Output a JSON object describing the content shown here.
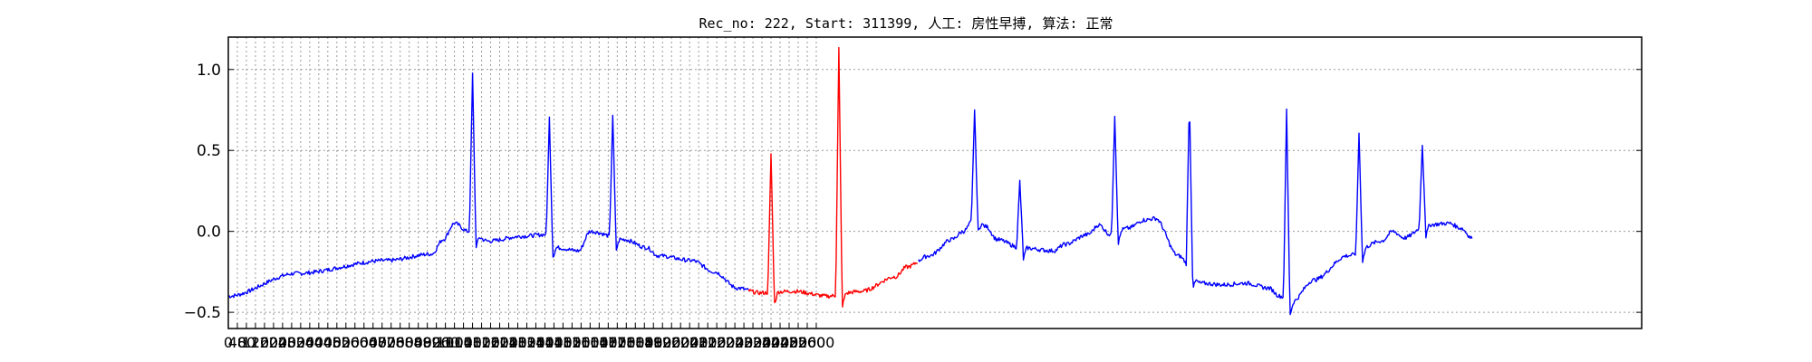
{
  "chart_data": {
    "type": "line",
    "title": "Rec_no: 222, Start: 311399, 人工: 房性早搏, 算法: 正常",
    "xlabel": "",
    "ylabel": "",
    "xlim": [
      0,
      6250
    ],
    "ylim": [
      -0.6,
      1.2
    ],
    "grid": true,
    "x_ticks": [
      0,
      40,
      80,
      120,
      160,
      200,
      240,
      280,
      320,
      360,
      400,
      440,
      480,
      520,
      560,
      600,
      640,
      680,
      720,
      760,
      800,
      840,
      880,
      920,
      960,
      1000,
      1040,
      1080,
      1120,
      1160,
      1200,
      1240,
      1280,
      1320,
      1360,
      1400,
      1440,
      1480,
      1520,
      1560,
      1600,
      1640,
      1680,
      1720,
      1760,
      1800,
      1840,
      1880,
      1920,
      1960,
      2000,
      2040,
      2080,
      2120,
      2160,
      2200,
      2240,
      2280,
      2320,
      2360,
      2400,
      2440,
      2480,
      2520,
      2560,
      2600
    ],
    "x_tick_labels": [
      "0",
      "40",
      "80",
      "120",
      "160",
      "200",
      "240",
      "280",
      "320",
      "360",
      "400",
      "440",
      "480",
      "520",
      "560",
      "600",
      "640",
      "680",
      "720",
      "760",
      "800",
      "840",
      "880",
      "920",
      "960",
      "1000",
      "1040",
      "1080",
      "1120",
      "1160",
      "1200",
      "1240",
      "1280",
      "1320",
      "1360",
      "1400",
      "1440",
      "1480",
      "1520",
      "1560",
      "1600",
      "1640",
      "1680",
      "1720",
      "1760",
      "1800",
      "1840",
      "1880",
      "1920",
      "1960",
      "2000",
      "2040",
      "2080",
      "2120",
      "2160",
      "2200",
      "2240",
      "2280",
      "2320",
      "2360",
      "2400",
      "2440",
      "2480",
      "2520",
      "2560",
      "2600"
    ],
    "y_ticks": [
      -0.5,
      0.0,
      0.5,
      1.0
    ],
    "y_tick_labels": [
      "−0.5",
      "0.0",
      "0.5",
      "1.0"
    ],
    "colors": {
      "normal": "#0000ff",
      "highlight": "#ff0000",
      "grid": "#9a9a9a"
    },
    "highlight_range": [
      2300,
      3050
    ],
    "signal_end": 5500,
    "baseline": [
      [
        0,
        -0.4
      ],
      [
        300,
        -0.26
      ],
      [
        700,
        -0.18
      ],
      [
        900,
        -0.14
      ],
      [
        950,
        -0.05
      ],
      [
        1000,
        0.05
      ],
      [
        1060,
        0.0
      ],
      [
        1150,
        -0.06
      ],
      [
        1300,
        -0.03
      ],
      [
        1400,
        -0.02
      ],
      [
        1450,
        -0.1
      ],
      [
        1550,
        -0.12
      ],
      [
        1600,
        0.0
      ],
      [
        1750,
        -0.05
      ],
      [
        1850,
        -0.1
      ],
      [
        1900,
        -0.15
      ],
      [
        2050,
        -0.18
      ],
      [
        2150,
        -0.25
      ],
      [
        2250,
        -0.35
      ],
      [
        2350,
        -0.38
      ],
      [
        2500,
        -0.37
      ],
      [
        2650,
        -0.4
      ],
      [
        2800,
        -0.37
      ],
      [
        2950,
        -0.28
      ],
      [
        3000,
        -0.22
      ],
      [
        3100,
        -0.15
      ],
      [
        3200,
        -0.05
      ],
      [
        3250,
        0.0
      ],
      [
        3300,
        0.08
      ],
      [
        3350,
        0.03
      ],
      [
        3400,
        -0.05
      ],
      [
        3500,
        -0.1
      ],
      [
        3650,
        -0.12
      ],
      [
        3700,
        -0.08
      ],
      [
        3800,
        -0.02
      ],
      [
        3850,
        0.04
      ],
      [
        3900,
        -0.02
      ],
      [
        3980,
        0.02
      ],
      [
        4050,
        0.07
      ],
      [
        4100,
        0.08
      ],
      [
        4200,
        -0.15
      ],
      [
        4300,
        -0.32
      ],
      [
        4400,
        -0.33
      ],
      [
        4500,
        -0.32
      ],
      [
        4600,
        -0.35
      ],
      [
        4650,
        -0.4
      ],
      [
        4700,
        -0.44
      ],
      [
        4800,
        -0.3
      ],
      [
        4950,
        -0.15
      ],
      [
        5100,
        -0.06
      ],
      [
        5150,
        0.0
      ],
      [
        5200,
        -0.04
      ],
      [
        5300,
        0.04
      ],
      [
        5400,
        0.05
      ],
      [
        5450,
        0.02
      ],
      [
        5500,
        -0.04
      ]
    ],
    "spikes": [
      [
        1080,
        0.97
      ],
      [
        1420,
        0.7
      ],
      [
        1700,
        0.72
      ],
      [
        2400,
        0.48
      ],
      [
        2700,
        1.13
      ],
      [
        3300,
        0.75
      ],
      [
        3500,
        0.31
      ],
      [
        3920,
        0.72
      ],
      [
        4250,
        0.83
      ],
      [
        4680,
        0.75
      ],
      [
        5000,
        0.61
      ],
      [
        5280,
        0.54
      ]
    ]
  }
}
